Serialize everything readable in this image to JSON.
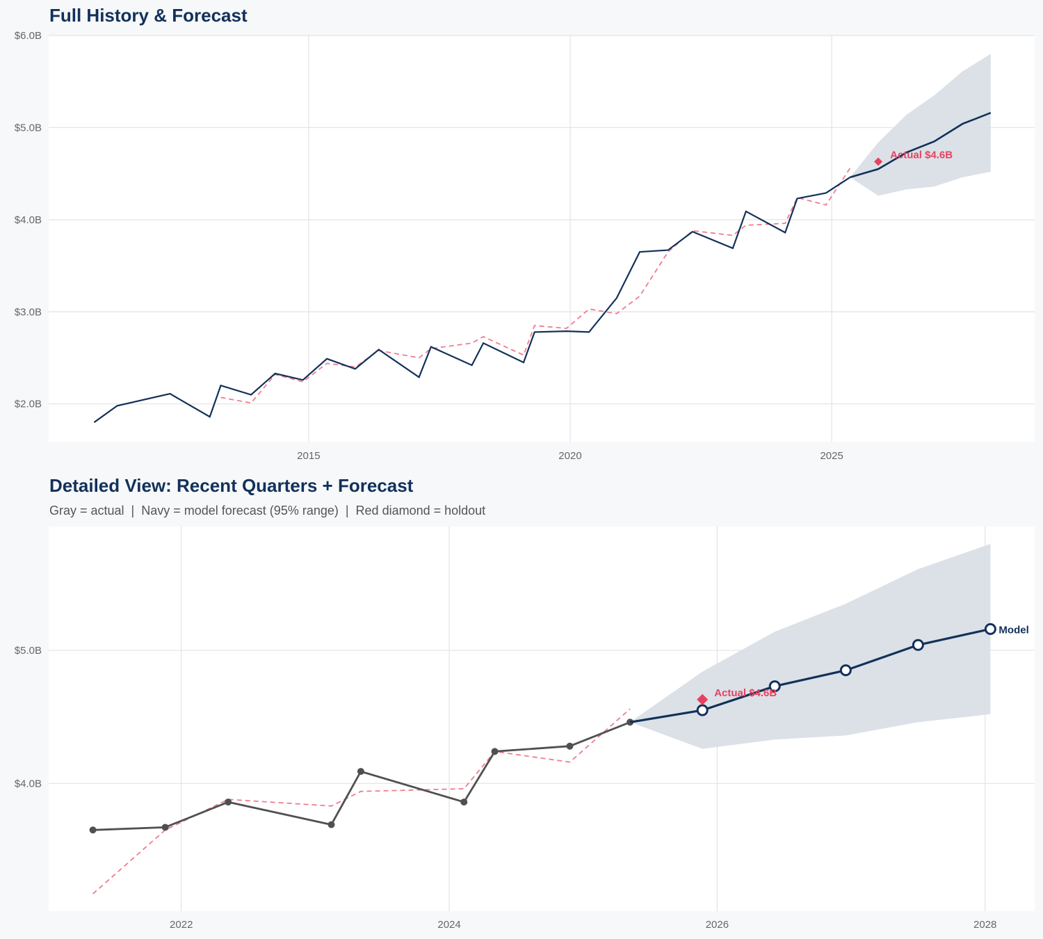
{
  "colors": {
    "navy": "#12315a",
    "gray_actual": "#505050",
    "fitted_dashed": "#f07c8e",
    "holdout_red": "#e5425f",
    "band": "#d9dfe6",
    "grid": "#e3e3e6",
    "background": "#f7f8fa"
  },
  "chart_data": [
    {
      "type": "line",
      "title": "Full History & Forecast",
      "xlim": [
        2010.03,
        2028.88
      ],
      "ylim": [
        1.59,
        6.0
      ],
      "x_ticks": [
        2015,
        2020,
        2025
      ],
      "x_tick_labels": [
        "2015",
        "2020",
        "2025"
      ],
      "y_ticks": [
        2,
        3,
        4,
        5,
        6
      ],
      "y_tick_labels": [
        "$2.0B",
        "$3.0B",
        "$4.0B",
        "$5.0B",
        "$6.0B"
      ],
      "grid": true,
      "actual": {
        "style": "navy-solid",
        "x": [
          2010.9,
          2011.34,
          2012.35,
          2013.11,
          2013.32,
          2013.9,
          2014.36,
          2014.89,
          2015.35,
          2015.89,
          2016.34,
          2017.11,
          2017.34,
          2018.12,
          2018.34,
          2019.11,
          2019.32,
          2019.93,
          2020.36,
          2020.89,
          2021.33,
          2021.87,
          2022.34,
          2023.11,
          2023.36,
          2024.11,
          2024.34,
          2024.89,
          2025.35
        ],
        "y": [
          1.8,
          1.98,
          2.11,
          1.86,
          2.2,
          2.1,
          2.33,
          2.26,
          2.49,
          2.38,
          2.59,
          2.29,
          2.62,
          2.42,
          2.66,
          2.45,
          2.78,
          2.79,
          2.78,
          3.15,
          3.65,
          3.67,
          3.87,
          3.69,
          4.09,
          3.86,
          4.23,
          4.29,
          4.46
        ]
      },
      "fitted": {
        "x": [
          2013.32,
          2013.9,
          2014.36,
          2014.89,
          2015.35,
          2015.89,
          2016.34,
          2017.11,
          2017.34,
          2018.12,
          2018.34,
          2019.11,
          2019.32,
          2019.93,
          2020.36,
          2020.89,
          2021.33,
          2021.87,
          2022.34,
          2023.11,
          2023.36,
          2024.11,
          2024.34,
          2024.89,
          2025.35
        ],
        "y": [
          2.07,
          2.01,
          2.32,
          2.24,
          2.44,
          2.4,
          2.58,
          2.5,
          2.6,
          2.66,
          2.73,
          2.53,
          2.85,
          2.82,
          3.03,
          2.98,
          3.17,
          3.65,
          3.88,
          3.83,
          3.94,
          3.96,
          4.24,
          4.16,
          4.56
        ]
      },
      "forecast": {
        "markers": false,
        "x": [
          2025.35,
          2025.89,
          2026.43,
          2026.96,
          2027.5,
          2028.04
        ],
        "y": [
          4.46,
          4.55,
          4.73,
          4.85,
          5.04,
          5.16
        ],
        "lower": [
          4.46,
          4.26,
          4.33,
          4.36,
          4.46,
          4.52
        ],
        "upper": [
          4.46,
          4.84,
          5.14,
          5.35,
          5.61,
          5.8
        ]
      },
      "holdout": {
        "x": 2025.89,
        "y": 4.63,
        "label": "Actual $4.6B"
      }
    },
    {
      "type": "line",
      "title": "Detailed View: Recent Quarters + Forecast",
      "subtitle": "Gray = actual  |  Navy = model forecast (95% range)  |  Red diamond = holdout",
      "xlim": [
        2021.01,
        2028.37
      ],
      "ylim": [
        3.04,
        5.93
      ],
      "x_ticks": [
        2022,
        2024,
        2026,
        2028
      ],
      "x_tick_labels": [
        "2022",
        "2024",
        "2026",
        "2028"
      ],
      "y_ticks": [
        4,
        5
      ],
      "y_tick_labels": [
        "$4.0B",
        "$5.0B"
      ],
      "grid": true,
      "actual": {
        "style": "gray-markers",
        "x": [
          2021.34,
          2021.88,
          2022.35,
          2023.12,
          2023.34,
          2024.11,
          2024.34,
          2024.9,
          2025.35
        ],
        "y": [
          3.65,
          3.67,
          3.86,
          3.69,
          4.09,
          3.86,
          4.24,
          4.28,
          4.46
        ]
      },
      "fitted": {
        "x": [
          2021.34,
          2021.88,
          2022.35,
          2023.12,
          2023.34,
          2024.11,
          2024.34,
          2024.9,
          2025.35
        ],
        "y": [
          3.17,
          3.65,
          3.88,
          3.83,
          3.94,
          3.96,
          4.24,
          4.16,
          4.56
        ]
      },
      "forecast": {
        "markers": true,
        "label": "Model",
        "x": [
          2025.35,
          2025.89,
          2026.43,
          2026.96,
          2027.5,
          2028.04
        ],
        "y": [
          4.46,
          4.55,
          4.73,
          4.85,
          5.04,
          5.16
        ],
        "lower": [
          4.46,
          4.26,
          4.33,
          4.36,
          4.46,
          4.52
        ],
        "upper": [
          4.46,
          4.84,
          5.14,
          5.35,
          5.61,
          5.8
        ]
      },
      "holdout": {
        "x": 2025.89,
        "y": 4.63,
        "label": "Actual $4.6B"
      }
    }
  ]
}
